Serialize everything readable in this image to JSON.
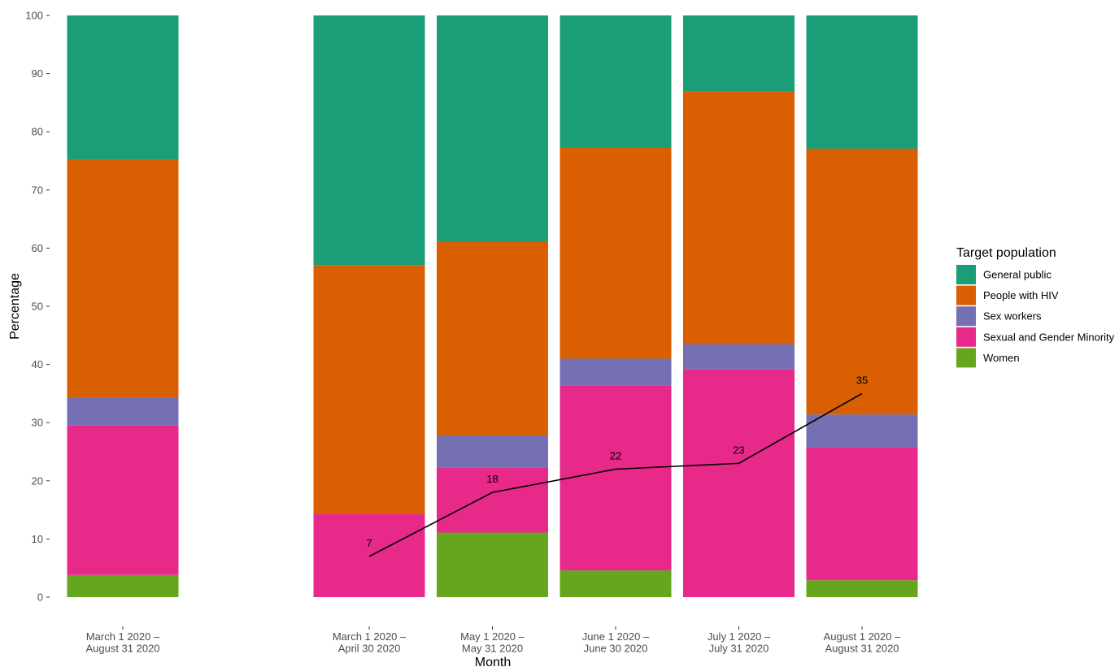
{
  "chart_data": {
    "type": "bar",
    "stacked": true,
    "percent_stacked": true,
    "xlabel": "Month",
    "ylabel": "Percentage",
    "ylim": [
      0,
      100
    ],
    "yticks": [
      0,
      10,
      20,
      30,
      40,
      50,
      60,
      70,
      80,
      90,
      100
    ],
    "grid": false,
    "legend": {
      "title": "Target population",
      "position": "right",
      "entries": [
        "General public",
        "People with HIV",
        "Sex workers",
        "Sexual and Gender Minority",
        "Women"
      ]
    },
    "categories": [
      [
        "March 1 2020 –",
        "August 31 2020"
      ],
      [
        "March 1 2020 –",
        "April 30 2020"
      ],
      [
        "May 1 2020 –",
        "May 31 2020"
      ],
      [
        "June 1 2020 –",
        "June 30 2020"
      ],
      [
        "July 1 2020 –",
        "July 31 2020"
      ],
      [
        "August 1 2020 –",
        "August 31 2020"
      ]
    ],
    "category_slots": [
      0,
      2,
      3,
      4,
      5,
      6
    ],
    "stack_order": [
      "Women",
      "Sexual and Gender Minority",
      "Sex workers",
      "People with HIV",
      "General public"
    ],
    "series": [
      {
        "name": "General public",
        "color": "#1b9e77",
        "values": [
          24.8,
          42.9,
          38.9,
          22.7,
          13.0,
          22.9
        ]
      },
      {
        "name": "People with HIV",
        "color": "#d95f02",
        "values": [
          40.9,
          42.8,
          33.3,
          36.3,
          43.5,
          45.7
        ]
      },
      {
        "name": "Sex workers",
        "color": "#7570b3",
        "values": [
          4.8,
          0.0,
          5.5,
          4.6,
          4.3,
          5.7
        ]
      },
      {
        "name": "Sexual and Gender Minority",
        "color": "#e7298a",
        "values": [
          25.7,
          14.3,
          11.2,
          31.8,
          39.2,
          22.8
        ]
      },
      {
        "name": "Women",
        "color": "#66a61e",
        "values": [
          3.8,
          0.0,
          11.1,
          4.6,
          0.0,
          2.9
        ]
      }
    ],
    "line": {
      "category_indices": [
        1,
        2,
        3,
        4,
        5
      ],
      "values": [
        7,
        18,
        22,
        23,
        35
      ],
      "labels": [
        "7",
        "18",
        "22",
        "23",
        "35"
      ],
      "color": "#000000"
    }
  }
}
